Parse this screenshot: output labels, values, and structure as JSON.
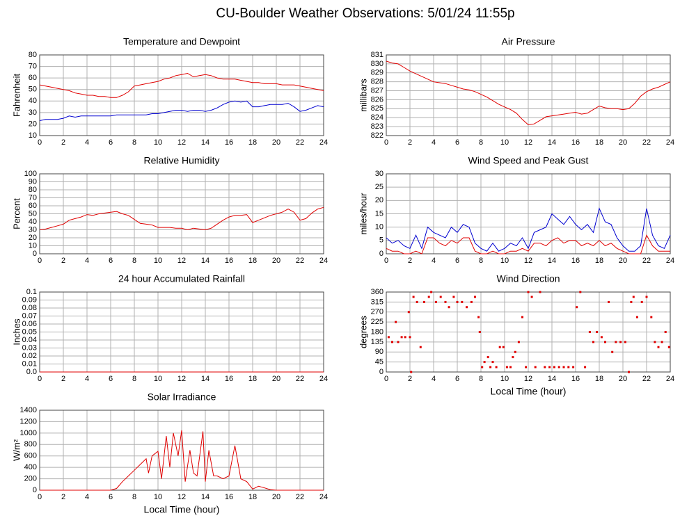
{
  "title": "CU-Boulder Weather Observations: 5/01/24 11:55p",
  "chart_data": [
    {
      "type": "line",
      "title": "Temperature and Dewpoint",
      "ylabel": "Fahrenheit",
      "x": [
        0,
        0.5,
        1,
        1.5,
        2,
        2.5,
        3,
        3.5,
        4,
        4.5,
        5,
        5.5,
        6,
        6.5,
        7,
        7.5,
        8,
        8.5,
        9,
        9.5,
        10,
        10.5,
        11,
        11.5,
        12,
        12.5,
        13,
        13.5,
        14,
        14.5,
        15,
        15.5,
        16,
        16.5,
        17,
        17.5,
        18,
        18.5,
        19,
        19.5,
        20,
        20.5,
        21,
        21.5,
        22,
        22.5,
        23,
        23.5,
        24
      ],
      "series": [
        {
          "color": "#e00000",
          "values": [
            54,
            53,
            52,
            51,
            50,
            49,
            47,
            46,
            45,
            45,
            44,
            44,
            43,
            43,
            45,
            48,
            53,
            54,
            55,
            56,
            57,
            59,
            60,
            62,
            63,
            64,
            61,
            62,
            63,
            62,
            60,
            59,
            59,
            59,
            58,
            57,
            56,
            56,
            55,
            55,
            55,
            54,
            54,
            54,
            53,
            52,
            51,
            50,
            49
          ]
        },
        {
          "color": "#0000d0",
          "values": [
            23,
            24,
            24,
            24,
            25,
            27,
            26,
            27,
            27,
            27,
            27,
            27,
            27,
            28,
            28,
            28,
            28,
            28,
            28,
            29,
            29,
            30,
            31,
            32,
            32,
            31,
            32,
            32,
            31,
            32,
            34,
            37,
            39,
            40,
            39,
            40,
            35,
            35,
            36,
            37,
            37,
            37,
            38,
            35,
            31,
            32,
            34,
            36,
            35
          ]
        }
      ],
      "xlim": [
        0,
        24
      ],
      "xticks": [
        0,
        2,
        4,
        6,
        8,
        10,
        12,
        14,
        16,
        18,
        20,
        22,
        24
      ],
      "ylim": [
        10,
        80
      ],
      "yticks": [
        10,
        20,
        30,
        40,
        50,
        60,
        70,
        80
      ],
      "grid": true
    },
    {
      "type": "line",
      "title": "Air Pressure",
      "ylabel": "millibars",
      "x": [
        0,
        0.5,
        1,
        1.5,
        2,
        2.5,
        3,
        3.5,
        4,
        4.5,
        5,
        5.5,
        6,
        6.5,
        7,
        7.5,
        8,
        8.5,
        9,
        9.5,
        10,
        10.5,
        11,
        11.5,
        12,
        12.5,
        13,
        13.5,
        14,
        14.5,
        15,
        15.5,
        16,
        16.5,
        17,
        17.5,
        18,
        18.5,
        19,
        19.5,
        20,
        20.5,
        21,
        21.5,
        22,
        22.5,
        23,
        23.5,
        24
      ],
      "series": [
        {
          "color": "#e00000",
          "values": [
            830.3,
            830.1,
            830,
            829.6,
            829.2,
            828.9,
            828.6,
            828.3,
            828,
            827.9,
            827.8,
            827.6,
            827.4,
            827.2,
            827.1,
            826.9,
            826.6,
            826.3,
            825.9,
            825.5,
            825.2,
            824.9,
            824.5,
            823.8,
            823.2,
            823.3,
            823.7,
            824.1,
            824.2,
            824.3,
            824.4,
            824.5,
            824.6,
            824.4,
            824.5,
            824.9,
            825.3,
            825.1,
            825,
            825,
            824.9,
            825,
            825.6,
            826.4,
            826.9,
            827.2,
            827.4,
            827.7,
            828
          ]
        }
      ],
      "xlim": [
        0,
        24
      ],
      "xticks": [
        0,
        2,
        4,
        6,
        8,
        10,
        12,
        14,
        16,
        18,
        20,
        22,
        24
      ],
      "ylim": [
        822,
        831
      ],
      "yticks": [
        822,
        823,
        824,
        825,
        826,
        827,
        828,
        829,
        830,
        831
      ],
      "grid": true
    },
    {
      "type": "line",
      "title": "Relative Humidity",
      "ylabel": "Percent",
      "x": [
        0,
        0.5,
        1,
        1.5,
        2,
        2.5,
        3,
        3.5,
        4,
        4.5,
        5,
        5.5,
        6,
        6.5,
        7,
        7.5,
        8,
        8.5,
        9,
        9.5,
        10,
        10.5,
        11,
        11.5,
        12,
        12.5,
        13,
        13.5,
        14,
        14.5,
        15,
        15.5,
        16,
        16.5,
        17,
        17.5,
        18,
        18.5,
        19,
        19.5,
        20,
        20.5,
        21,
        21.5,
        22,
        22.5,
        23,
        23.5,
        24
      ],
      "series": [
        {
          "color": "#e00000",
          "values": [
            30,
            31,
            33,
            35,
            37,
            42,
            44,
            46,
            49,
            48,
            50,
            51,
            52,
            53,
            50,
            48,
            43,
            38,
            37,
            36,
            33,
            33,
            33,
            32,
            32,
            30,
            32,
            31,
            30,
            32,
            37,
            42,
            46,
            48,
            48,
            49,
            39,
            42,
            45,
            48,
            50,
            52,
            56,
            52,
            42,
            44,
            51,
            56,
            58
          ]
        }
      ],
      "xlim": [
        0,
        24
      ],
      "xticks": [
        0,
        2,
        4,
        6,
        8,
        10,
        12,
        14,
        16,
        18,
        20,
        22,
        24
      ],
      "ylim": [
        0,
        100
      ],
      "yticks": [
        0,
        10,
        20,
        30,
        40,
        50,
        60,
        70,
        80,
        90,
        100
      ],
      "grid": true
    },
    {
      "type": "line",
      "title": "Wind Speed and Peak Gust",
      "ylabel": "miles/hour",
      "x": [
        0,
        0.5,
        1,
        1.5,
        2,
        2.5,
        3,
        3.5,
        4,
        4.5,
        5,
        5.5,
        6,
        6.5,
        7,
        7.5,
        8,
        8.5,
        9,
        9.5,
        10,
        10.5,
        11,
        11.5,
        12,
        12.5,
        13,
        13.5,
        14,
        14.5,
        15,
        15.5,
        16,
        16.5,
        17,
        17.5,
        18,
        18.5,
        19,
        19.5,
        20,
        20.5,
        21,
        21.5,
        22,
        22.5,
        23,
        23.5,
        24
      ],
      "series": [
        {
          "color": "#0000d0",
          "values": [
            6,
            4,
            5,
            3,
            2,
            7,
            2,
            10,
            8,
            7,
            6,
            10,
            8,
            11,
            10,
            4,
            2,
            1,
            4,
            1,
            2,
            4,
            3,
            6,
            2,
            8,
            9,
            10,
            15,
            13,
            11,
            14,
            11,
            9,
            11,
            8,
            17,
            12,
            11,
            6,
            3,
            1,
            1,
            3,
            17,
            7,
            3,
            2,
            7
          ]
        },
        {
          "color": "#e00000",
          "values": [
            2,
            1,
            1,
            0,
            0,
            1,
            0,
            6,
            6,
            4,
            3,
            5,
            4,
            6,
            6,
            1,
            0,
            0,
            1,
            0,
            0,
            1,
            1,
            2,
            1,
            4,
            4,
            3,
            5,
            6,
            4,
            5,
            5,
            3,
            4,
            3,
            5,
            3,
            4,
            2,
            1,
            0,
            0,
            0,
            7,
            3,
            1,
            1,
            1
          ]
        }
      ],
      "xlim": [
        0,
        24
      ],
      "xticks": [
        0,
        2,
        4,
        6,
        8,
        10,
        12,
        14,
        16,
        18,
        20,
        22,
        24
      ],
      "ylim": [
        0,
        30
      ],
      "yticks": [
        0,
        5,
        10,
        15,
        20,
        25,
        30
      ],
      "grid": true
    },
    {
      "type": "line",
      "title": "24 hour Accumulated Rainfall",
      "ylabel": "Inches",
      "x": [
        0,
        24
      ],
      "series": [
        {
          "color": "#e00000",
          "values": [
            0,
            0
          ]
        }
      ],
      "xlim": [
        0,
        24
      ],
      "xticks": [
        0,
        2,
        4,
        6,
        8,
        10,
        12,
        14,
        16,
        18,
        20,
        22,
        24
      ],
      "ylim": [
        0,
        0.1
      ],
      "yticks": [
        {
          "value": 0,
          "label": "0.0"
        },
        0.01,
        0.02,
        0.03,
        0.04,
        0.05,
        0.06,
        0.07,
        0.08,
        0.09,
        0.1
      ],
      "grid": true
    },
    {
      "type": "scatter",
      "title": "Wind Direction",
      "ylabel": "degrees",
      "xlabel": "Local Time (hour)",
      "x": [
        0.2,
        0.5,
        0.8,
        1,
        1.3,
        1.6,
        1.9,
        2,
        2.1,
        2.3,
        2.6,
        2.9,
        3.2,
        3.6,
        3.8,
        4.2,
        4.6,
        5,
        5.3,
        5.7,
        6,
        6.4,
        6.8,
        7.2,
        7.5,
        7.8,
        7.9,
        8.1,
        8.3,
        8.6,
        8.8,
        9,
        9.3,
        9.6,
        9.9,
        10.2,
        10.5,
        10.7,
        10.9,
        11.2,
        11.5,
        11.8,
        12,
        12.3,
        12.6,
        13,
        13.4,
        13.8,
        14.2,
        14.6,
        15,
        15.4,
        15.8,
        16.1,
        16.4,
        16.8,
        17.2,
        17.5,
        17.8,
        18.2,
        18.5,
        18.8,
        19.1,
        19.4,
        19.8,
        20.2,
        20.5,
        20.7,
        20.9,
        21.2,
        21.6,
        22,
        22.4,
        22.7,
        23,
        23.3,
        23.6,
        23.9
      ],
      "series": [
        {
          "color": "#e00000",
          "values": [
            157,
            135,
            225,
            135,
            157,
            157,
            270,
            157,
            0,
            338,
            315,
            112,
            315,
            338,
            360,
            315,
            338,
            315,
            292,
            338,
            315,
            315,
            292,
            315,
            338,
            247,
            180,
            22,
            45,
            67,
            22,
            45,
            22,
            112,
            112,
            22,
            22,
            67,
            90,
            135,
            247,
            22,
            360,
            338,
            22,
            360,
            22,
            22,
            22,
            22,
            22,
            22,
            22,
            292,
            360,
            22,
            180,
            135,
            180,
            157,
            135,
            315,
            90,
            135,
            135,
            135,
            0,
            315,
            338,
            247,
            315,
            338,
            247,
            135,
            112,
            135,
            180,
            112
          ]
        }
      ],
      "xlim": [
        0,
        24
      ],
      "xticks": [
        0,
        2,
        4,
        6,
        8,
        10,
        12,
        14,
        16,
        18,
        20,
        22,
        24
      ],
      "ylim": [
        0,
        360
      ],
      "yticks": [
        0,
        45,
        90,
        135,
        180,
        225,
        270,
        315,
        360
      ],
      "grid": true
    },
    {
      "type": "line",
      "title": "Solar Irradiance",
      "ylabel": "W/m²",
      "xlabel": "Local Time (hour)",
      "x": [
        0,
        6,
        6.5,
        7,
        7.5,
        8,
        8.5,
        9,
        9.2,
        9.5,
        10,
        10.3,
        10.7,
        11,
        11.3,
        11.7,
        12,
        12.3,
        12.7,
        13,
        13.3,
        13.8,
        14,
        14.3,
        14.7,
        15,
        15.5,
        16,
        16.5,
        17,
        17.5,
        18,
        18.5,
        19,
        19.5,
        20,
        24
      ],
      "series": [
        {
          "color": "#e00000",
          "values": [
            0,
            0,
            30,
            150,
            250,
            350,
            450,
            550,
            300,
            600,
            680,
            200,
            950,
            400,
            1000,
            600,
            1050,
            150,
            700,
            300,
            250,
            1030,
            150,
            700,
            250,
            250,
            200,
            250,
            780,
            200,
            150,
            20,
            70,
            40,
            10,
            0,
            0
          ]
        }
      ],
      "xlim": [
        0,
        24
      ],
      "xticks": [
        0,
        2,
        4,
        6,
        8,
        10,
        12,
        14,
        16,
        18,
        20,
        22,
        24
      ],
      "ylim": [
        0,
        1400
      ],
      "yticks": [
        0,
        200,
        400,
        600,
        800,
        1000,
        1200,
        1400
      ],
      "grid": true
    }
  ]
}
